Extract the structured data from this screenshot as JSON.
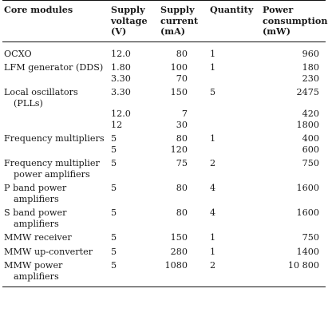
{
  "table": {
    "headers": {
      "module": "Core modules",
      "voltage": [
        "Supply",
        "voltage",
        "(V)"
      ],
      "current": [
        "Supply",
        "current",
        "(mA)"
      ],
      "quantity": "Quantity",
      "power": [
        "Power",
        "consumption",
        "(mW)"
      ]
    },
    "rows": [
      {
        "module": [
          "OCXO"
        ],
        "voltage": "12.0",
        "current": "80",
        "quantity": "1",
        "power": "960"
      },
      {
        "module": [
          "LFM generator (DDS)"
        ],
        "voltage": "1.80",
        "current": "100",
        "quantity": "1",
        "power": "180"
      },
      {
        "module": [
          ""
        ],
        "voltage": "3.30",
        "current": "70",
        "quantity": "",
        "power": "230"
      },
      {
        "module": [
          "Local oscillators",
          "(PLLs)"
        ],
        "voltage": "3.30",
        "current": "150",
        "quantity": "5",
        "power": "2475"
      },
      {
        "module": [
          ""
        ],
        "voltage": "12.0",
        "current": "7",
        "quantity": "",
        "power": "420"
      },
      {
        "module": [
          ""
        ],
        "voltage": "12",
        "current": "30",
        "quantity": "",
        "power": "1800"
      },
      {
        "module": [
          "Frequency multipliers"
        ],
        "voltage": "5",
        "current": "80",
        "quantity": "1",
        "power": "400"
      },
      {
        "module": [
          ""
        ],
        "voltage": "5",
        "current": "120",
        "quantity": "",
        "power": "600"
      },
      {
        "module": [
          "Frequency multiplier",
          "power amplifiers"
        ],
        "voltage": "5",
        "current": "75",
        "quantity": "2",
        "power": "750"
      },
      {
        "module": [
          "P band power",
          "amplifiers"
        ],
        "voltage": "5",
        "current": "80",
        "quantity": "4",
        "power": "1600"
      },
      {
        "module": [
          "S band power",
          "amplifiers"
        ],
        "voltage": "5",
        "current": "80",
        "quantity": "4",
        "power": "1600"
      },
      {
        "module": [
          "MMW receiver"
        ],
        "voltage": "5",
        "current": "150",
        "quantity": "1",
        "power": "750"
      },
      {
        "module": [
          "MMW up-converter"
        ],
        "voltage": "5",
        "current": "280",
        "quantity": "1",
        "power": "1400"
      },
      {
        "module": [
          "MMW power",
          "amplifiers"
        ],
        "voltage": "5",
        "current": "1080",
        "quantity": "2",
        "power": "10 800"
      }
    ]
  }
}
